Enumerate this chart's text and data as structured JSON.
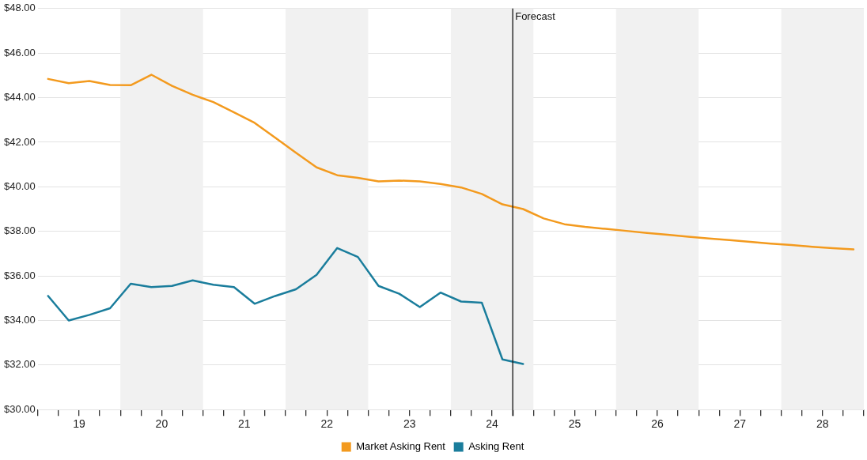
{
  "chart_data": {
    "type": "line",
    "xlim": [
      18.5,
      28.5
    ],
    "ylim": [
      30,
      48
    ],
    "xticks": [
      {
        "value": 18.5,
        "label": null
      },
      {
        "value": 18.75,
        "label": null
      },
      19,
      {
        "value": 19.25,
        "label": null
      },
      {
        "value": 19.5,
        "label": null
      },
      {
        "value": 19.75,
        "label": null
      },
      20,
      {
        "value": 20.25,
        "label": null
      },
      {
        "value": 20.5,
        "label": null
      },
      {
        "value": 20.75,
        "label": null
      },
      21,
      {
        "value": 21.25,
        "label": null
      },
      {
        "value": 21.5,
        "label": null
      },
      {
        "value": 21.75,
        "label": null
      },
      22,
      {
        "value": 22.25,
        "label": null
      },
      {
        "value": 22.5,
        "label": null
      },
      {
        "value": 22.75,
        "label": null
      },
      23,
      {
        "value": 23.25,
        "label": null
      },
      {
        "value": 23.5,
        "label": null
      },
      {
        "value": 23.75,
        "label": null
      },
      24,
      {
        "value": 24.25,
        "label": null
      },
      {
        "value": 24.5,
        "label": null
      },
      {
        "value": 24.75,
        "label": null
      },
      25,
      {
        "value": 25.25,
        "label": null
      },
      {
        "value": 25.5,
        "label": null
      },
      {
        "value": 25.75,
        "label": null
      },
      26,
      {
        "value": 26.25,
        "label": null
      },
      {
        "value": 26.5,
        "label": null
      },
      {
        "value": 26.75,
        "label": null
      },
      27,
      {
        "value": 27.25,
        "label": null
      },
      {
        "value": 27.5,
        "label": null
      },
      {
        "value": 27.75,
        "label": null
      },
      28,
      {
        "value": 28.25,
        "label": null
      },
      {
        "value": 28.5,
        "label": null
      }
    ],
    "yticks": [
      {
        "value": 30,
        "label": "$30.00"
      },
      {
        "value": 32,
        "label": "$32.00"
      },
      {
        "value": 34,
        "label": "$34.00"
      },
      {
        "value": 36,
        "label": "$36.00"
      },
      {
        "value": 38,
        "label": "$38.00"
      },
      {
        "value": 40,
        "label": "$40.00"
      },
      {
        "value": 42,
        "label": "$42.00"
      },
      {
        "value": 44,
        "label": "$44.00"
      },
      {
        "value": 46,
        "label": "$46.00"
      },
      {
        "value": 48,
        "label": "$48.00"
      }
    ],
    "grid": "y",
    "legend": "bottom",
    "marker": "none",
    "bands": [
      {
        "axis": "x",
        "from": 19.5,
        "to": 20.5,
        "color": "#f1f1f1"
      },
      {
        "axis": "x",
        "from": 21.5,
        "to": 22.5,
        "color": "#f1f1f1"
      },
      {
        "axis": "x",
        "from": 23.5,
        "to": 24.5,
        "color": "#f1f1f1"
      },
      {
        "axis": "x",
        "from": 25.5,
        "to": 26.5,
        "color": "#f1f1f1"
      },
      {
        "axis": "x",
        "from": 27.5,
        "to": 28.5,
        "color": "#f1f1f1"
      }
    ],
    "ref_lines": [
      {
        "axis": "x",
        "value": 24.25,
        "label": "Forecast",
        "color": "#111111"
      }
    ],
    "series": [
      {
        "name": "Market Asking Rent",
        "color": "#f39a1e",
        "x": [
          18.625,
          18.875,
          19.125,
          19.375,
          19.625,
          19.875,
          20.125,
          20.375,
          20.625,
          20.875,
          21.125,
          21.375,
          21.625,
          21.875,
          22.125,
          22.375,
          22.625,
          22.875,
          23.125,
          23.375,
          23.625,
          23.875,
          24.125,
          24.375,
          24.625,
          24.875,
          25.125,
          25.375,
          25.625,
          25.875,
          26.125,
          26.375,
          26.625,
          26.875,
          27.125,
          27.375,
          27.625,
          27.875,
          28.125,
          28.375
        ],
        "values": [
          44.84,
          44.65,
          44.75,
          44.57,
          44.56,
          45.03,
          44.53,
          44.13,
          43.8,
          43.34,
          42.87,
          42.2,
          41.53,
          40.87,
          40.52,
          40.4,
          40.24,
          40.28,
          40.24,
          40.13,
          39.97,
          39.68,
          39.21,
          39.0,
          38.58,
          38.32,
          38.2,
          38.11,
          38.02,
          37.93,
          37.85,
          37.76,
          37.68,
          37.61,
          37.53,
          37.45,
          37.39,
          37.31,
          37.24,
          37.19
        ]
      },
      {
        "name": "Asking Rent",
        "color": "#1a7d9c",
        "x": [
          18.625,
          18.875,
          19.125,
          19.375,
          19.625,
          19.875,
          20.125,
          20.375,
          20.625,
          20.875,
          21.125,
          21.375,
          21.625,
          21.875,
          22.125,
          22.375,
          22.625,
          22.875,
          23.125,
          23.375,
          23.625,
          23.875,
          24.125,
          24.375
        ],
        "values": [
          35.1,
          34.0,
          34.25,
          34.55,
          35.65,
          35.5,
          35.55,
          35.8,
          35.6,
          35.5,
          34.75,
          35.1,
          35.4,
          36.05,
          37.25,
          36.85,
          35.55,
          35.2,
          34.6,
          35.25,
          34.85,
          34.8,
          32.25,
          32.05
        ]
      }
    ]
  }
}
